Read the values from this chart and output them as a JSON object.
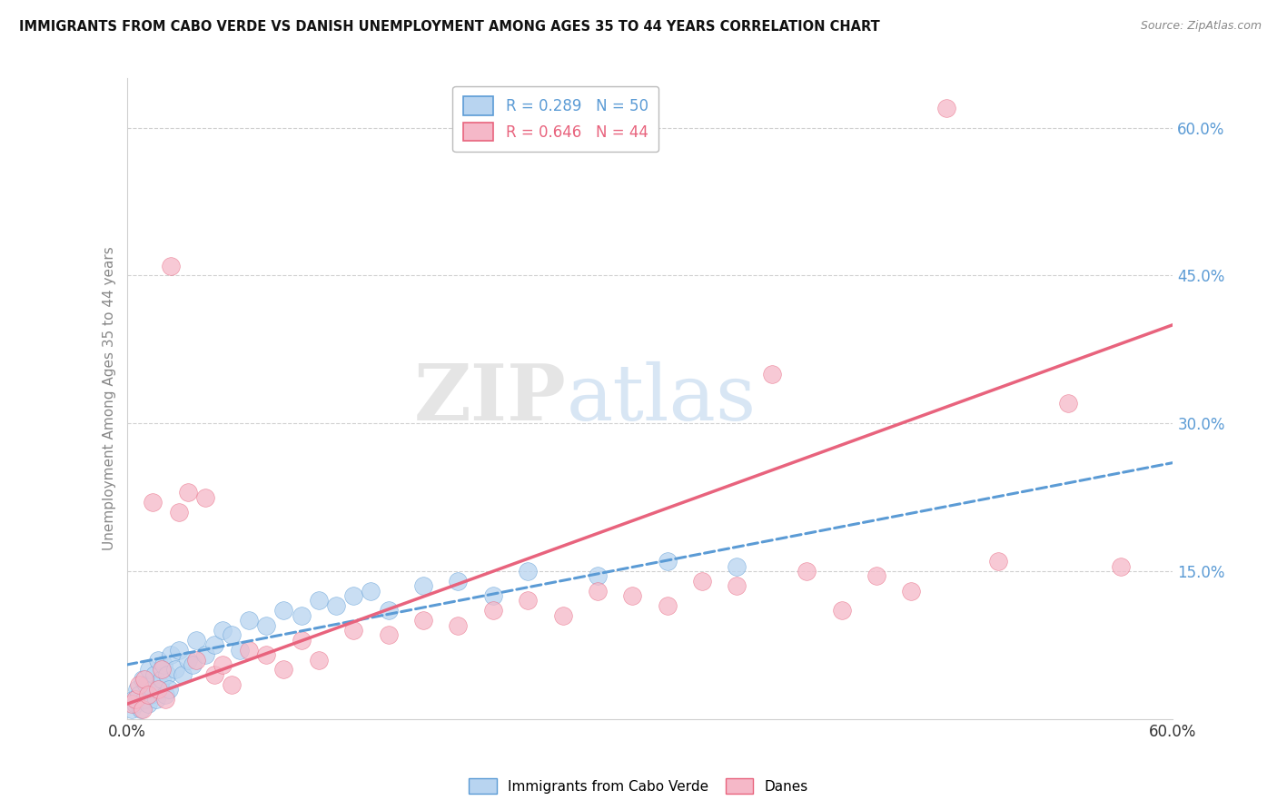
{
  "title": "IMMIGRANTS FROM CABO VERDE VS DANISH UNEMPLOYMENT AMONG AGES 35 TO 44 YEARS CORRELATION CHART",
  "source": "Source: ZipAtlas.com",
  "ylabel": "Unemployment Among Ages 35 to 44 years",
  "legend1_text": "R = 0.289   N = 50",
  "legend2_text": "R = 0.646   N = 44",
  "legend1_face": "#b8d4f0",
  "legend2_face": "#f5b8c8",
  "trendline1_color": "#5b9bd5",
  "trendline2_color": "#e8637d",
  "watermark_zip": "ZIP",
  "watermark_atlas": "atlas",
  "blue_x": [
    0.3,
    0.4,
    0.5,
    0.6,
    0.7,
    0.8,
    0.9,
    1.0,
    1.1,
    1.2,
    1.3,
    1.4,
    1.5,
    1.6,
    1.7,
    1.8,
    1.9,
    2.0,
    2.1,
    2.2,
    2.3,
    2.4,
    2.5,
    2.8,
    3.0,
    3.2,
    3.5,
    3.8,
    4.0,
    4.5,
    5.0,
    5.5,
    6.0,
    6.5,
    7.0,
    8.0,
    9.0,
    10.0,
    11.0,
    12.0,
    13.0,
    14.0,
    15.0,
    17.0,
    19.0,
    21.0,
    23.0,
    27.0,
    31.0,
    35.0
  ],
  "blue_y": [
    1.0,
    2.0,
    1.5,
    3.0,
    2.5,
    1.0,
    4.0,
    2.0,
    3.5,
    1.5,
    5.0,
    2.5,
    3.0,
    4.5,
    2.0,
    6.0,
    3.5,
    4.0,
    5.5,
    2.5,
    4.5,
    3.0,
    6.5,
    5.0,
    7.0,
    4.5,
    6.0,
    5.5,
    8.0,
    6.5,
    7.5,
    9.0,
    8.5,
    7.0,
    10.0,
    9.5,
    11.0,
    10.5,
    12.0,
    11.5,
    12.5,
    13.0,
    11.0,
    13.5,
    14.0,
    12.5,
    15.0,
    14.5,
    16.0,
    15.5
  ],
  "pink_x": [
    0.3,
    0.5,
    0.7,
    0.9,
    1.0,
    1.2,
    1.5,
    1.8,
    2.0,
    2.2,
    2.5,
    3.0,
    3.5,
    4.0,
    4.5,
    5.0,
    5.5,
    6.0,
    7.0,
    8.0,
    9.0,
    10.0,
    11.0,
    13.0,
    15.0,
    17.0,
    19.0,
    21.0,
    23.0,
    25.0,
    27.0,
    29.0,
    31.0,
    33.0,
    35.0,
    37.0,
    39.0,
    41.0,
    43.0,
    45.0,
    47.0,
    50.0,
    54.0,
    57.0
  ],
  "pink_y": [
    1.5,
    2.0,
    3.5,
    1.0,
    4.0,
    2.5,
    22.0,
    3.0,
    5.0,
    2.0,
    46.0,
    21.0,
    23.0,
    6.0,
    22.5,
    4.5,
    5.5,
    3.5,
    7.0,
    6.5,
    5.0,
    8.0,
    6.0,
    9.0,
    8.5,
    10.0,
    9.5,
    11.0,
    12.0,
    10.5,
    13.0,
    12.5,
    11.5,
    14.0,
    13.5,
    35.0,
    15.0,
    11.0,
    14.5,
    13.0,
    62.0,
    16.0,
    32.0,
    15.5
  ],
  "pink_trend_x0": 0.0,
  "pink_trend_y0": 1.5,
  "pink_trend_x1": 60.0,
  "pink_trend_y1": 40.0,
  "blue_trend_x0": 0.0,
  "blue_trend_y0": 5.5,
  "blue_trend_x1": 60.0,
  "blue_trend_y1": 26.0,
  "xlim": [
    0,
    60
  ],
  "ylim": [
    0,
    65
  ],
  "yticks": [
    0,
    15,
    30,
    45,
    60
  ],
  "ytick_labels": [
    "",
    "15.0%",
    "30.0%",
    "45.0%",
    "60.0%"
  ],
  "xtick_left_label": "0.0%",
  "xtick_right_label": "60.0%",
  "grid_color": "#d0d0d0",
  "bg_color": "#ffffff"
}
